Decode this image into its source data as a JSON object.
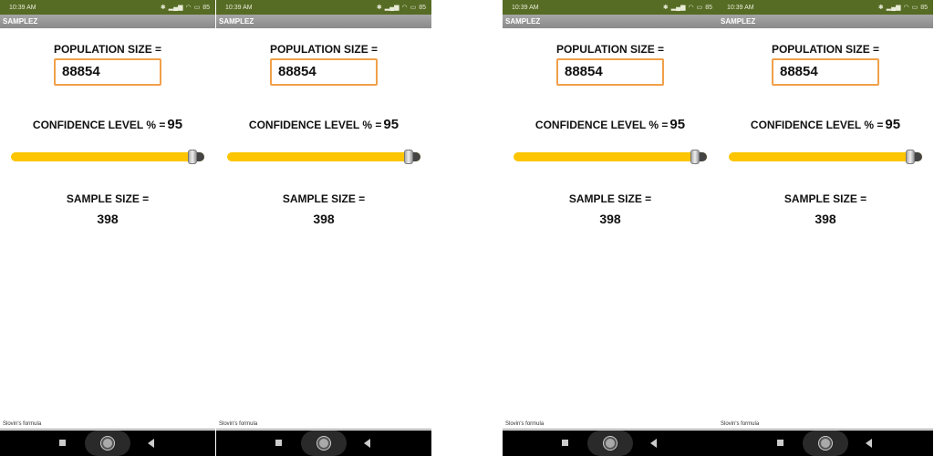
{
  "panels": [
    {
      "status": {
        "time": "10:39 AM",
        "battery": "85"
      },
      "app_title": "SAMPLEZ",
      "population_label": "POPULATION SIZE =",
      "population_value": "88854",
      "confidence_label": "CONFIDENCE LEVEL % =",
      "confidence_value": "95",
      "slider_fraction": 0.96,
      "sample_label": "SAMPLE SIZE =",
      "sample_value": "398",
      "footer": "Slovin's formula"
    },
    {
      "status": {
        "time": "10:39 AM",
        "battery": "85"
      },
      "app_title": "SAMPLEZ",
      "population_label": "POPULATION SIZE =",
      "population_value": "88854",
      "confidence_label": "CONFIDENCE LEVEL % =",
      "confidence_value": "95",
      "slider_fraction": 0.96,
      "sample_label": "SAMPLE SIZE =",
      "sample_value": "398",
      "footer": "Slovin's formula"
    },
    {
      "status": {
        "time": "10:39 AM",
        "battery": "85"
      },
      "app_title": "SAMPLEZ",
      "population_label": "POPULATION SIZE =",
      "population_value": "88854",
      "confidence_label": "CONFIDENCE LEVEL % =",
      "confidence_value": "95",
      "slider_fraction": 0.96,
      "sample_label": "SAMPLE SIZE =",
      "sample_value": "398",
      "footer": "Slovin's formula"
    },
    {
      "status": {
        "time": "10:39 AM",
        "battery": "85"
      },
      "app_title": "SAMPLEZ",
      "population_label": "POPULATION SIZE =",
      "population_value": "88854",
      "confidence_label": "CONFIDENCE LEVEL % =",
      "confidence_value": "95",
      "slider_fraction": 0.96,
      "sample_label": "SAMPLE SIZE =",
      "sample_value": "398",
      "footer": "Slovin's formula"
    }
  ],
  "colors": {
    "status_bar": "#566b24",
    "slider_track": "#fcc500",
    "input_border": "#f0a04a"
  },
  "icons": [
    "settings-icon",
    "screen-icon",
    "signal-icon",
    "bluetooth-icon",
    "wifi-icon",
    "battery-icon",
    "nav-recents-icon",
    "nav-home-icon",
    "nav-back-icon"
  ]
}
